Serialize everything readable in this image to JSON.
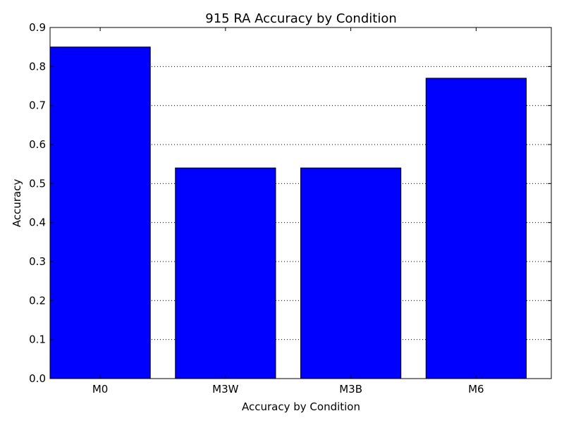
{
  "chart_data": {
    "type": "bar",
    "title": "915 RA Accuracy by Condition",
    "xlabel": "Accuracy by Condition",
    "ylabel": "Accuracy",
    "categories": [
      "M0",
      "M3W",
      "M3B",
      "M6"
    ],
    "values": [
      0.85,
      0.54,
      0.54,
      0.77
    ],
    "ylim": [
      0,
      0.9
    ],
    "yticks": [
      "0.0",
      "0.1",
      "0.2",
      "0.3",
      "0.4",
      "0.5",
      "0.6",
      "0.7",
      "0.8",
      "0.9"
    ],
    "grid": "horizontal-dotted",
    "bar_color": "#0000ff",
    "edge_color": "#000000"
  }
}
